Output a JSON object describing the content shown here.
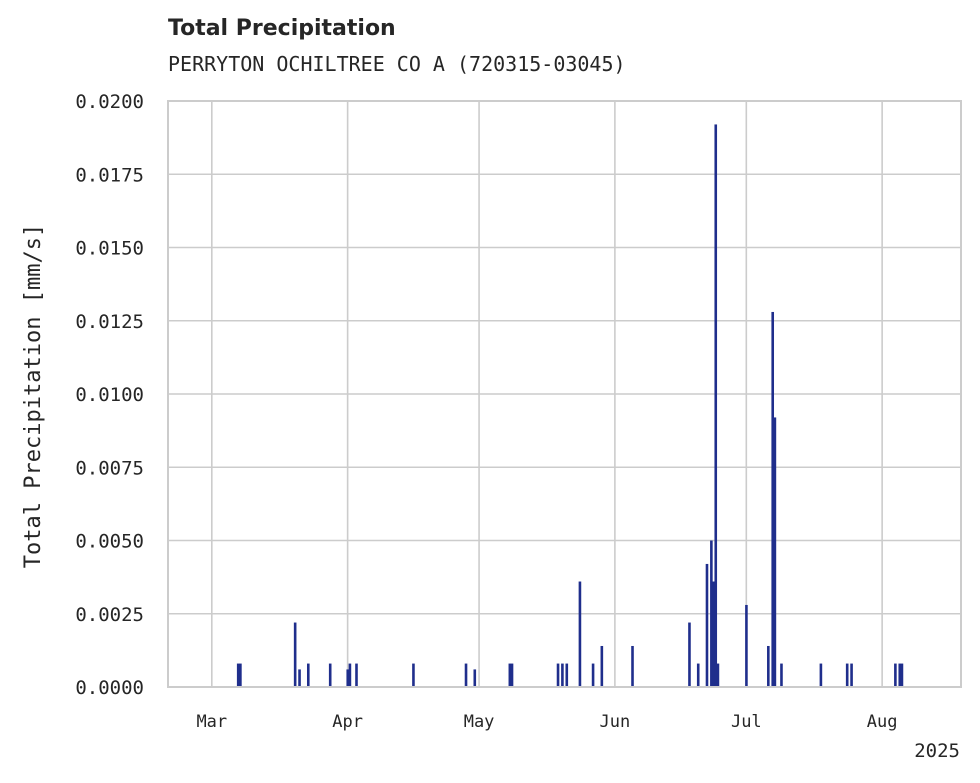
{
  "chart_data": {
    "type": "bar",
    "title": "Total Precipitation",
    "subtitle": "PERRYTON OCHILTREE CO A (720315-03045)",
    "ylabel": "Total Precipitation [mm/s]",
    "xlabel": "",
    "year_label": "2025",
    "xlim": [
      "2025-02-19",
      "2025-08-19"
    ],
    "ylim": [
      0,
      0.02
    ],
    "yticks": [
      "0.0000",
      "0.0025",
      "0.0050",
      "0.0075",
      "0.0100",
      "0.0125",
      "0.0150",
      "0.0175",
      "0.0200"
    ],
    "xticks": [
      {
        "date": "2025-03-01",
        "label": "Mar"
      },
      {
        "date": "2025-04-01",
        "label": "Apr"
      },
      {
        "date": "2025-05-01",
        "label": "May"
      },
      {
        "date": "2025-06-01",
        "label": "Jun"
      },
      {
        "date": "2025-07-01",
        "label": "Jul"
      },
      {
        "date": "2025-08-01",
        "label": "Aug"
      }
    ],
    "grid": true,
    "bar_color": "#1f2e8c",
    "data": [
      {
        "date": "2025-03-07",
        "value": 0.0008
      },
      {
        "date": "2025-03-07 12:00",
        "value": 0.0008
      },
      {
        "date": "2025-03-20",
        "value": 0.0022
      },
      {
        "date": "2025-03-21",
        "value": 0.0006
      },
      {
        "date": "2025-03-23",
        "value": 0.0008
      },
      {
        "date": "2025-03-28",
        "value": 0.0008
      },
      {
        "date": "2025-04-01",
        "value": 0.0006
      },
      {
        "date": "2025-04-01 12:00",
        "value": 0.0008
      },
      {
        "date": "2025-04-03",
        "value": 0.0008
      },
      {
        "date": "2025-04-16",
        "value": 0.0008
      },
      {
        "date": "2025-04-28",
        "value": 0.0008
      },
      {
        "date": "2025-04-30",
        "value": 0.0006
      },
      {
        "date": "2025-05-08",
        "value": 0.0008
      },
      {
        "date": "2025-05-08 12:00",
        "value": 0.0008
      },
      {
        "date": "2025-05-19",
        "value": 0.0008
      },
      {
        "date": "2025-05-20",
        "value": 0.0008
      },
      {
        "date": "2025-05-21",
        "value": 0.0008
      },
      {
        "date": "2025-05-24",
        "value": 0.0036
      },
      {
        "date": "2025-05-27",
        "value": 0.0008
      },
      {
        "date": "2025-05-29",
        "value": 0.0014
      },
      {
        "date": "2025-06-05",
        "value": 0.0014
      },
      {
        "date": "2025-06-18",
        "value": 0.0022
      },
      {
        "date": "2025-06-20",
        "value": 0.0008
      },
      {
        "date": "2025-06-22",
        "value": 0.0042
      },
      {
        "date": "2025-06-23",
        "value": 0.005
      },
      {
        "date": "2025-06-23 12:00",
        "value": 0.0036
      },
      {
        "date": "2025-06-24",
        "value": 0.0192
      },
      {
        "date": "2025-06-24 12:00",
        "value": 0.0008
      },
      {
        "date": "2025-07-01",
        "value": 0.0028
      },
      {
        "date": "2025-07-06",
        "value": 0.0014
      },
      {
        "date": "2025-07-07",
        "value": 0.0128
      },
      {
        "date": "2025-07-07 12:00",
        "value": 0.0092
      },
      {
        "date": "2025-07-09",
        "value": 0.0008
      },
      {
        "date": "2025-07-18",
        "value": 0.0008
      },
      {
        "date": "2025-07-24",
        "value": 0.0008
      },
      {
        "date": "2025-07-25",
        "value": 0.0008
      },
      {
        "date": "2025-08-04",
        "value": 0.0008
      },
      {
        "date": "2025-08-05",
        "value": 0.0008
      },
      {
        "date": "2025-08-05 12:00",
        "value": 0.0008
      }
    ]
  }
}
